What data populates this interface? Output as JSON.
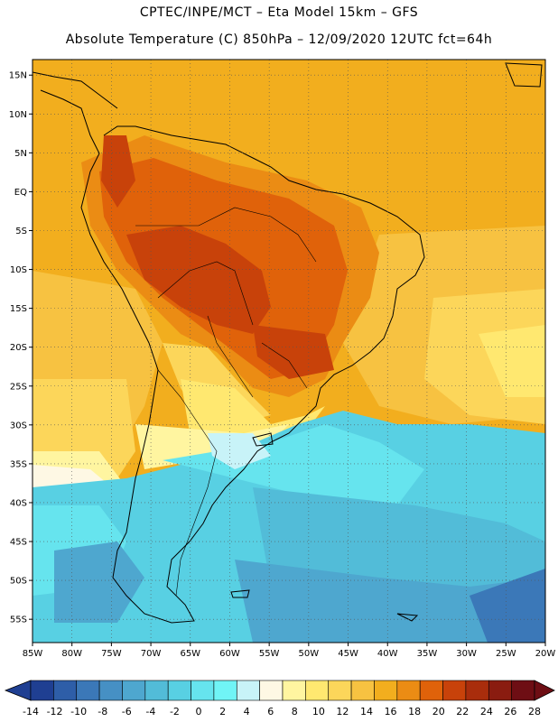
{
  "header": {
    "line1": "CPTEC/INPE/MCT –  Eta Model 15km – GFS",
    "line2": "Absolute Temperature (C) 850hPa – 12/09/2020 12UTC fct=64h"
  },
  "map": {
    "lon_range": [
      -85,
      -20
    ],
    "lat_range": [
      -58,
      17
    ],
    "lat_ticks": [
      {
        "value": 15,
        "label": "15N"
      },
      {
        "value": 10,
        "label": "10N"
      },
      {
        "value": 5,
        "label": "5N"
      },
      {
        "value": 0,
        "label": "EQ"
      },
      {
        "value": -5,
        "label": "5S"
      },
      {
        "value": -10,
        "label": "10S"
      },
      {
        "value": -15,
        "label": "15S"
      },
      {
        "value": -20,
        "label": "20S"
      },
      {
        "value": -25,
        "label": "25S"
      },
      {
        "value": -30,
        "label": "30S"
      },
      {
        "value": -35,
        "label": "35S"
      },
      {
        "value": -40,
        "label": "40S"
      },
      {
        "value": -45,
        "label": "45S"
      },
      {
        "value": -50,
        "label": "50S"
      },
      {
        "value": -55,
        "label": "55S"
      }
    ],
    "lon_ticks": [
      {
        "value": -85,
        "label": "85W"
      },
      {
        "value": -80,
        "label": "80W"
      },
      {
        "value": -75,
        "label": "75W"
      },
      {
        "value": -70,
        "label": "70W"
      },
      {
        "value": -65,
        "label": "65W"
      },
      {
        "value": -60,
        "label": "60W"
      },
      {
        "value": -55,
        "label": "55W"
      },
      {
        "value": -50,
        "label": "50W"
      },
      {
        "value": -45,
        "label": "45W"
      },
      {
        "value": -40,
        "label": "40W"
      },
      {
        "value": -35,
        "label": "35W"
      },
      {
        "value": -30,
        "label": "30W"
      },
      {
        "value": -25,
        "label": "25W"
      },
      {
        "value": -20,
        "label": "20W"
      }
    ],
    "gridlines": true
  },
  "colorbar": {
    "labels": [
      "-14",
      "-12",
      "-10",
      "-8",
      "-6",
      "-4",
      "-2",
      "0",
      "2",
      "4",
      "6",
      "8",
      "10",
      "12",
      "14",
      "16",
      "18",
      "20",
      "22",
      "24",
      "26",
      "28"
    ],
    "colors": [
      "#1f3f92",
      "#2e5ea8",
      "#3b78b8",
      "#4690c4",
      "#4ea7cf",
      "#52bcd8",
      "#58d0e3",
      "#66e4ee",
      "#70f4f6",
      "#c8f3f8",
      "#fef8e4",
      "#fff5a0",
      "#ffe870",
      "#fcd65a",
      "#f7c241",
      "#f2ae1e",
      "#eb8c14",
      "#e0620a",
      "#c8420a",
      "#a92d0c",
      "#8a1c10",
      "#6e0e14"
    ]
  }
}
